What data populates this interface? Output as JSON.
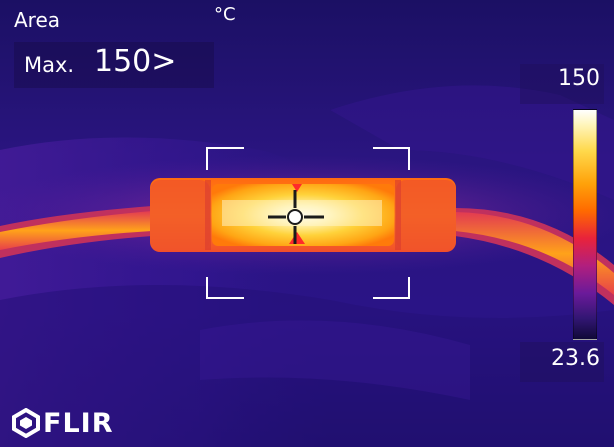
{
  "overlay": {
    "measurement_mode": "Area",
    "unit": "°C",
    "max_label": "Max.",
    "max_value": "150>"
  },
  "scale": {
    "max": "150",
    "min": "23.6"
  },
  "brand": {
    "name": "FLIR",
    "icon": "flir-logo-icon"
  },
  "palette": {
    "cold": "#1f1170",
    "mid": "#b11f7e",
    "warm": "#ff7a00",
    "hot": "#ffffff"
  }
}
